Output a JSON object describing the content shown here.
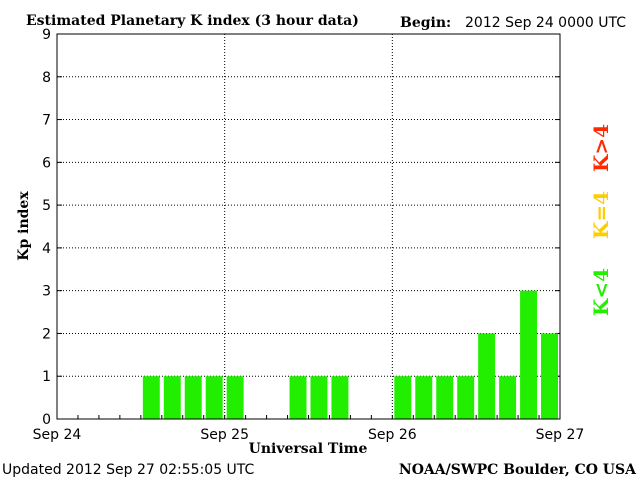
{
  "header": {
    "title": "Estimated Planetary K index (3 hour data)",
    "begin_label": "Begin:",
    "begin_value": "2012 Sep 24 0000 UTC"
  },
  "footer": {
    "updated": "Updated 2012 Sep 27 02:55:05 UTC",
    "source": "NOAA/SWPC Boulder, CO USA"
  },
  "legend": {
    "items": [
      {
        "label": "K>4",
        "color": "#ff2a00"
      },
      {
        "label": "K=4",
        "color": "#ffcc00"
      },
      {
        "label": "K<4",
        "color": "#22ee00"
      }
    ]
  },
  "colors": {
    "bar": "#22ee00",
    "axis": "#000000",
    "grid": "#000000",
    "background": "#ffffff"
  },
  "chart_data": {
    "type": "bar",
    "xlabel": "Universal Time",
    "ylabel": "Kp index",
    "ylim": [
      0,
      9
    ],
    "yticks": [
      "0",
      "1",
      "2",
      "3",
      "4",
      "5",
      "6",
      "7",
      "8",
      "9"
    ],
    "xticks": [
      "Sep 24",
      "Sep 25",
      "Sep 26",
      "Sep 27"
    ],
    "bin_hours": 3,
    "total_bins": 24,
    "grid": "dotted",
    "values": [
      null,
      null,
      null,
      null,
      1,
      1,
      1,
      1,
      1,
      null,
      null,
      1,
      1,
      1,
      null,
      null,
      1,
      1,
      1,
      1,
      2,
      1,
      3,
      2
    ]
  }
}
